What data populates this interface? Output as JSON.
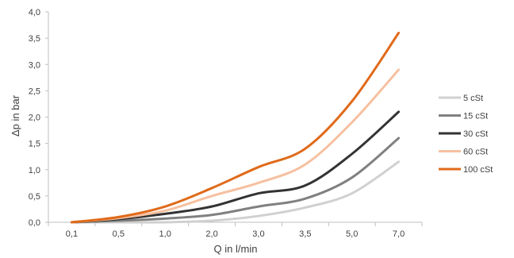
{
  "chart_data": {
    "type": "line",
    "xlabel": "Q in l/min",
    "ylabel": "Δp in bar",
    "categories": [
      "0,1",
      "0,5",
      "1,0",
      "2,0",
      "3,0",
      "3,5",
      "5,0",
      "7,0"
    ],
    "y_ticks": [
      "0,0",
      "0,5",
      "1,0",
      "1,5",
      "2,0",
      "2,5",
      "3,0",
      "3,5",
      "4,0"
    ],
    "ylim": [
      0,
      4
    ],
    "grid": false,
    "legend_position": "right",
    "series": [
      {
        "name": "5 cSt",
        "color": "#d0d0d0",
        "values": [
          0.0,
          0.0,
          0.0,
          0.03,
          0.12,
          0.28,
          0.55,
          1.15
        ]
      },
      {
        "name": "15 cSt",
        "color": "#808080",
        "values": [
          0.0,
          0.03,
          0.07,
          0.14,
          0.3,
          0.45,
          0.85,
          1.6
        ]
      },
      {
        "name": "30 cSt",
        "color": "#333333",
        "values": [
          0.0,
          0.06,
          0.16,
          0.3,
          0.55,
          0.7,
          1.3,
          2.1
        ]
      },
      {
        "name": "60 cSt",
        "color": "#f6c0a0",
        "values": [
          0.0,
          0.08,
          0.22,
          0.5,
          0.75,
          1.1,
          1.9,
          2.9
        ]
      },
      {
        "name": "100 cSt",
        "color": "#e06a1a",
        "values": [
          0.0,
          0.1,
          0.3,
          0.65,
          1.05,
          1.4,
          2.3,
          3.6
        ]
      }
    ]
  }
}
